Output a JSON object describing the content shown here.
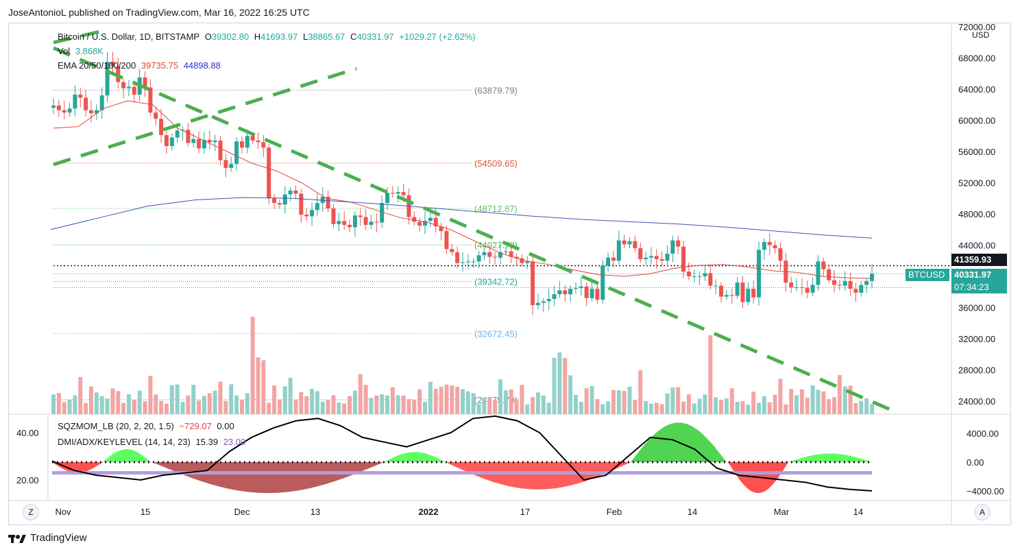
{
  "publisher_line": "JoseAntonioL published on TradingView.com, Mar 16, 2022 16:25 UTC",
  "brand": "TradingView",
  "legend": {
    "symbol": "Bitcoin / U.S. Dollar, 1D, BITSTAMP",
    "open_label": "O",
    "open": "39302.80",
    "high_label": "H",
    "high": "41693.97",
    "low_label": "L",
    "low": "38865.67",
    "close_label": "C",
    "close": "40331.97",
    "change": "+1029.27 (+2.62%)",
    "vol_label": "Vol",
    "vol": "3.868K",
    "ema_label": "EMA 20/50/100/200",
    "ema20": "39735.75",
    "ema200": "44898.88",
    "sqz_label": "SQZMOM_LB (20, 2, 20, 1.5)",
    "sqz_val": "−729.07",
    "sqz_val2": "0.00",
    "dmi_label": "DMI/ADX/KEYLEVEL (14, 14, 23)",
    "dmi_val": "15.39",
    "dmi_val2": "23.00"
  },
  "currency": "USD",
  "price_axis_labels": [
    "72000.00",
    "68000.00",
    "64000.00",
    "60000.00",
    "56000.00",
    "52000.00",
    "48000.00",
    "44000.00",
    "36000.00",
    "32000.00",
    "28000.00",
    "24000.00"
  ],
  "osc_axis_labels": [
    "4000.00",
    "0.00",
    "−4000.00"
  ],
  "osc_left_labels": [
    "40.00",
    "20.00"
  ],
  "time_labels": [
    "Nov",
    "15",
    "Dec",
    "13",
    "2022",
    "17",
    "Feb",
    "14",
    "Mar",
    "14"
  ],
  "current_price_tag": {
    "line_price": "41359.93",
    "symbol": "BTCUSD",
    "price": "40331.97",
    "countdown": "07:34:23"
  },
  "levels": [
    "(63879.79)",
    "(54509.65)",
    "(48712.87)",
    "(44027.79)",
    "(39342.72)",
    "(32672.45)",
    "(24175.79)"
  ],
  "level_colors": [
    "#787b86",
    "#e0503a",
    "#66bb6a",
    "#4caf50",
    "#26a69a",
    "#64b5f6",
    "#787b86"
  ],
  "axis_buttons": {
    "left": "Z",
    "right": "A"
  },
  "colors": {
    "up": "#26a69a",
    "down": "#ef5350",
    "ema20": "#e0443a",
    "ema200": "#3f51b5",
    "trend": "#4caf50",
    "vol_up": "#92d1c9",
    "vol_down": "#f2a5a3"
  },
  "chart_data": {
    "type": "candlestick",
    "title": "Bitcoin / U.S. Dollar, 1D, BITSTAMP",
    "x_ticks": [
      "Nov",
      "15",
      "Dec",
      "13",
      "2022",
      "17",
      "Feb",
      "14",
      "Mar",
      "14"
    ],
    "ylim": [
      22000,
      72000
    ],
    "y_ticks": [
      24000,
      28000,
      32000,
      36000,
      44000,
      48000,
      52000,
      56000,
      60000,
      64000,
      68000,
      72000
    ],
    "ohlc_close_series": [
      61900,
      61300,
      61000,
      61500,
      63300,
      62900,
      61300,
      60900,
      61300,
      63200,
      67500,
      66900,
      64900,
      64100,
      64300,
      63300,
      65500,
      64200,
      61000,
      60200,
      58100,
      56700,
      57800,
      58700,
      58800,
      57100,
      57600,
      56400,
      57500,
      57200,
      57400,
      54900,
      53900,
      54400,
      57300,
      56500,
      58000,
      57400,
      57200,
      56500,
      50000,
      49400,
      49200,
      50500,
      51000,
      50600,
      47900,
      47700,
      48500,
      49400,
      50200,
      48700,
      46700,
      47100,
      46600,
      46300,
      47800,
      47600,
      46600,
      47000,
      46900,
      49400,
      50700,
      50600,
      50800,
      50400,
      47600,
      47000,
      46500,
      47100,
      47500,
      46400,
      45800,
      43500,
      43100,
      41700,
      41800,
      41900,
      41900,
      42700,
      43100,
      42500,
      42400,
      43100,
      43200,
      42500,
      42300,
      41700,
      41900,
      36300,
      36600,
      36800,
      37100,
      37700,
      38200,
      37700,
      38400,
      38500,
      38700,
      37200,
      38400,
      37000,
      41400,
      42400,
      42000,
      44600,
      44100,
      44500,
      43600,
      42200,
      42400,
      42600,
      42200,
      42000,
      42900,
      44600,
      43800,
      40600,
      40000,
      40000,
      40000,
      40400,
      38800,
      38800,
      37400,
      37600,
      37500,
      39200,
      36700,
      38400,
      37300,
      43400,
      44400,
      44000,
      43600,
      42000,
      39200,
      38600,
      38600,
      38500,
      37900,
      38900,
      41900,
      40900,
      39500,
      38900,
      38800,
      39400,
      38400,
      37900,
      38900,
      39400,
      40332
    ],
    "ema20_approx": [
      59000,
      59200,
      61500,
      62500,
      62000,
      59000,
      57500,
      56000,
      54500,
      53500,
      52000,
      50000,
      49500,
      48500,
      47500,
      47000,
      46000,
      44500,
      43000,
      42000,
      41500,
      40800,
      40200,
      40000,
      40300,
      41000,
      41400,
      41500,
      41200,
      40700,
      40500,
      40000,
      39800,
      39736
    ],
    "ema200_approx": [
      46000,
      47500,
      49000,
      49800,
      50100,
      50000,
      49600,
      49200,
      48700,
      48200,
      47700,
      47300,
      47000,
      46700,
      46300,
      45800,
      45300,
      44899
    ],
    "volume_approx_k": "relative bars, peak ~ Dec 4",
    "levels": [
      63879.79,
      54509.65,
      48712.87,
      44027.79,
      39342.72,
      32672.45,
      24175.79
    ],
    "last_close": 40331.97,
    "current_line": 41359.93,
    "oscillator": {
      "sqzmom_range": [
        -4000,
        4000
      ],
      "adx_approx": [
        28,
        24,
        22,
        21,
        20,
        22,
        23,
        24,
        32,
        38,
        42,
        45,
        46,
        43,
        38,
        36,
        34,
        37,
        40,
        46,
        47,
        45,
        40,
        30,
        20,
        22,
        30,
        38,
        37,
        33,
        25,
        22,
        21,
        20,
        19,
        17,
        16,
        15.39
      ],
      "keylevel": 23
    }
  }
}
